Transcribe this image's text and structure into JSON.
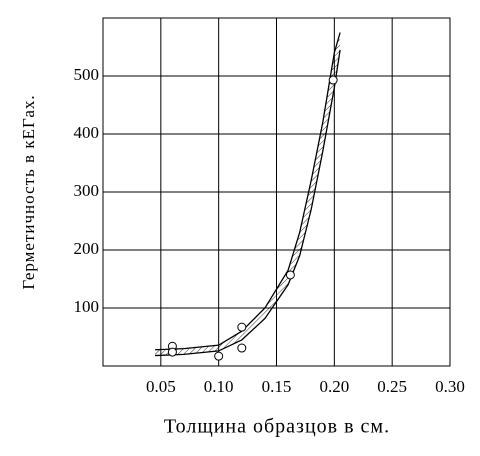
{
  "chart_data": {
    "type": "scatter",
    "x_label": "Толщина образцов в см.",
    "y_label": "Герметичность в кЕГах.",
    "xlim": [
      0,
      0.3
    ],
    "ylim": [
      0,
      600
    ],
    "xticks": [
      0.05,
      {
        "value": 0.1,
        "label": "0.10"
      },
      0.15,
      {
        "value": 0.2,
        "label": "0.20"
      },
      0.25,
      {
        "value": 0.3,
        "label": "0.30"
      }
    ],
    "yticks": [
      100,
      200,
      300,
      400,
      500
    ],
    "grid": true,
    "color": "#000000",
    "points": {
      "x": [
        0.06,
        0.06,
        0.1,
        0.12,
        0.12,
        0.162,
        0.199
      ],
      "y": [
        34,
        24,
        17,
        67,
        31,
        157,
        493
      ]
    },
    "band": {
      "x": [
        0.045,
        0.07,
        0.1,
        0.12,
        0.14,
        0.16,
        0.17,
        0.18,
        0.19,
        0.2,
        0.205
      ],
      "lower": [
        18,
        20,
        26,
        45,
        82,
        140,
        190,
        270,
        370,
        480,
        545
      ],
      "upper": [
        28,
        30,
        36,
        60,
        100,
        165,
        230,
        320,
        420,
        540,
        575
      ]
    }
  }
}
